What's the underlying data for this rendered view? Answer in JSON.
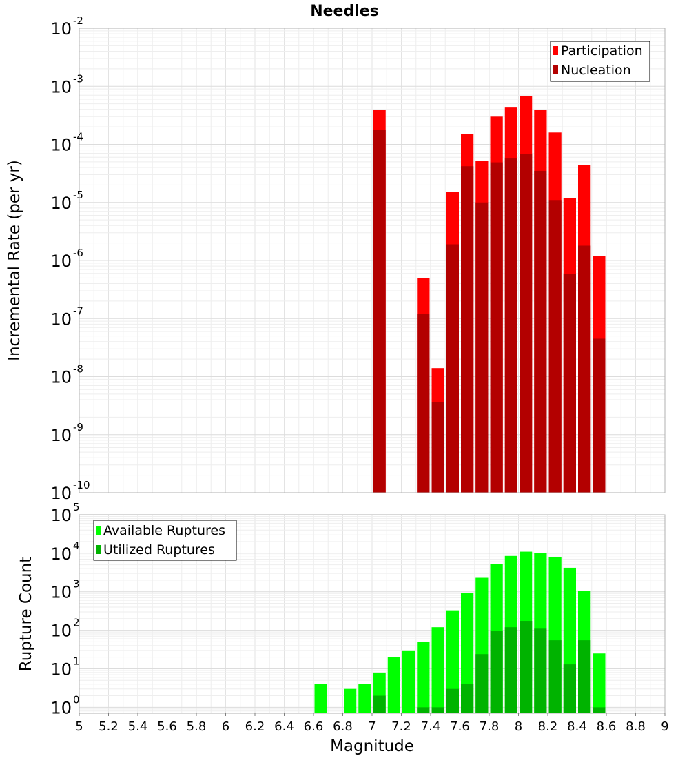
{
  "chart_data": [
    {
      "type": "bar",
      "title": "Needles",
      "xlabel": "",
      "ylabel": "Incremental Rate (per yr)",
      "yscale": "log",
      "ylim": [
        1e-10,
        0.01
      ],
      "y_tick_exponents": [
        -10,
        -9,
        -8,
        -7,
        -6,
        -5,
        -4,
        -3,
        -2
      ],
      "xlim": [
        5,
        9
      ],
      "bar_width": 0.1,
      "grid": true,
      "legend_position": "top-right",
      "overlay": true,
      "x": [
        7.05,
        7.35,
        7.45,
        7.55,
        7.65,
        7.75,
        7.85,
        7.95,
        8.05,
        8.15,
        8.25,
        8.35,
        8.45,
        8.55
      ],
      "series": [
        {
          "name": "Participation",
          "color": "#ff0000",
          "values": [
            0.00039,
            5e-07,
            1.4e-08,
            1.5e-05,
            0.00015,
            5.2e-05,
            0.0003,
            0.00043,
            0.00067,
            0.00039,
            0.00016,
            1.2e-05,
            4.4e-05,
            1.2e-06
          ]
        },
        {
          "name": "Nucleation",
          "color": "#b30000",
          "values": [
            0.00018,
            1.2e-07,
            3.6e-09,
            1.9e-06,
            4.2e-05,
            1e-05,
            4.9e-05,
            5.7e-05,
            6.9e-05,
            3.5e-05,
            1.1e-05,
            5.9e-07,
            1.8e-06,
            4.5e-08
          ]
        }
      ]
    },
    {
      "type": "bar",
      "title": "",
      "xlabel": "Magnitude",
      "ylabel": "Rupture Count",
      "yscale": "log",
      "ylim": [
        0.7,
        100000.0
      ],
      "y_tick_exponents": [
        0,
        1,
        2,
        3,
        4,
        5
      ],
      "xlim": [
        5,
        9
      ],
      "x_ticks": [
        "5",
        "5.2",
        "5.4",
        "5.6",
        "5.8",
        "6",
        "6.2",
        "6.4",
        "6.6",
        "6.8",
        "7",
        "7.2",
        "7.4",
        "7.6",
        "7.8",
        "8",
        "8.2",
        "8.4",
        "8.6",
        "8.8",
        "9"
      ],
      "bar_width": 0.1,
      "grid": true,
      "legend_position": "top-left",
      "overlay": true,
      "x": [
        6.65,
        6.85,
        6.95,
        7.05,
        7.15,
        7.25,
        7.35,
        7.45,
        7.55,
        7.65,
        7.75,
        7.85,
        7.95,
        8.05,
        8.15,
        8.25,
        8.35,
        8.45,
        8.55
      ],
      "series": [
        {
          "name": "Available Ruptures",
          "color": "#00ff00",
          "values": [
            4,
            3,
            4,
            8,
            20,
            30,
            50,
            120,
            330,
            950,
            2300,
            5200,
            8500,
            11000,
            10000,
            8000,
            4200,
            1050,
            25
          ]
        },
        {
          "name": "Utilized Ruptures",
          "color": "#00b300",
          "values": [
            null,
            null,
            null,
            2,
            null,
            null,
            1,
            1,
            3,
            4,
            24,
            95,
            120,
            175,
            110,
            55,
            13,
            55,
            1
          ]
        }
      ]
    }
  ]
}
